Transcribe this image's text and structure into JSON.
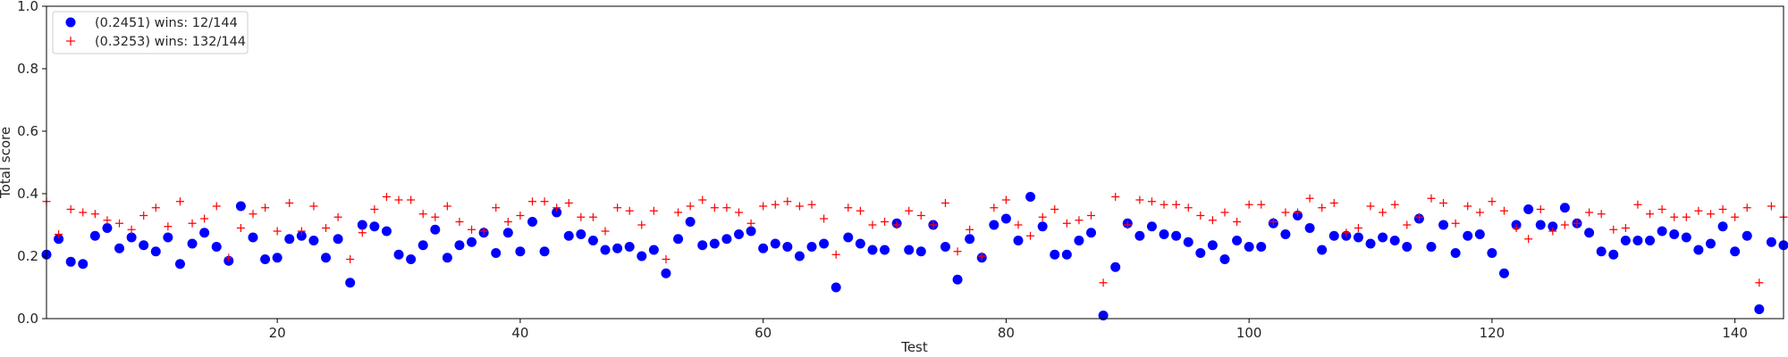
{
  "chart_data": {
    "type": "scatter",
    "title": "",
    "xlabel": "Test",
    "ylabel": "Total score",
    "xlim": [
      1,
      144
    ],
    "ylim": [
      0.0,
      1.0
    ],
    "xticks": [
      20,
      40,
      60,
      80,
      100,
      120,
      140
    ],
    "xtick_labels": [
      "20",
      "40",
      "60",
      "80",
      "100",
      "120",
      "140"
    ],
    "yticks": [
      0.0,
      0.2,
      0.4,
      0.6,
      0.8,
      1.0
    ],
    "ytick_labels": [
      "0.0",
      "0.2",
      "0.4",
      "0.6",
      "0.8",
      "1.0"
    ],
    "grid": false,
    "legend_position": "top-left",
    "series": [
      {
        "name": "(0.2451) wins: 12/144",
        "marker": "circle",
        "color": "#0000ff",
        "x": [
          1,
          2,
          3,
          4,
          5,
          6,
          7,
          8,
          9,
          10,
          11,
          12,
          13,
          14,
          15,
          16,
          17,
          18,
          19,
          20,
          21,
          22,
          23,
          24,
          25,
          26,
          27,
          28,
          29,
          30,
          31,
          32,
          33,
          34,
          35,
          36,
          37,
          38,
          39,
          40,
          41,
          42,
          43,
          44,
          45,
          46,
          47,
          48,
          49,
          50,
          51,
          52,
          53,
          54,
          55,
          56,
          57,
          58,
          59,
          60,
          61,
          62,
          63,
          64,
          65,
          66,
          67,
          68,
          69,
          70,
          71,
          72,
          73,
          74,
          75,
          76,
          77,
          78,
          79,
          80,
          81,
          82,
          83,
          84,
          85,
          86,
          87,
          88,
          89,
          90,
          91,
          92,
          93,
          94,
          95,
          96,
          97,
          98,
          99,
          100,
          101,
          102,
          103,
          104,
          105,
          106,
          107,
          108,
          109,
          110,
          111,
          112,
          113,
          114,
          115,
          116,
          117,
          118,
          119,
          120,
          121,
          122,
          123,
          124,
          125,
          126,
          127,
          128,
          129,
          130,
          131,
          132,
          133,
          134,
          135,
          136,
          137,
          138,
          139,
          140,
          141,
          142,
          143,
          144
        ],
        "y": [
          0.205,
          0.255,
          0.182,
          0.175,
          0.265,
          0.29,
          0.225,
          0.26,
          0.235,
          0.215,
          0.26,
          0.175,
          0.24,
          0.275,
          0.23,
          0.185,
          0.36,
          0.26,
          0.19,
          0.195,
          0.255,
          0.265,
          0.25,
          0.195,
          0.255,
          0.115,
          0.3,
          0.295,
          0.28,
          0.205,
          0.19,
          0.235,
          0.285,
          0.195,
          0.235,
          0.245,
          0.275,
          0.21,
          0.275,
          0.215,
          0.31,
          0.215,
          0.34,
          0.265,
          0.27,
          0.25,
          0.22,
          0.225,
          0.23,
          0.2,
          0.22,
          0.145,
          0.255,
          0.31,
          0.235,
          0.24,
          0.255,
          0.27,
          0.28,
          0.225,
          0.24,
          0.23,
          0.2,
          0.23,
          0.24,
          0.1,
          0.26,
          0.24,
          0.22,
          0.22,
          0.305,
          0.22,
          0.215,
          0.3,
          0.23,
          0.125,
          0.255,
          0.195,
          0.3,
          0.32,
          0.25,
          0.39,
          0.295,
          0.205,
          0.205,
          0.25,
          0.275,
          0.01,
          0.165,
          0.305,
          0.265,
          0.295,
          0.27,
          0.265,
          0.245,
          0.21,
          0.235,
          0.19,
          0.25,
          0.23,
          0.23,
          0.305,
          0.27,
          0.33,
          0.29,
          0.22,
          0.265,
          0.265,
          0.26,
          0.24,
          0.26,
          0.25,
          0.23,
          0.32,
          0.23,
          0.3,
          0.21,
          0.265,
          0.27,
          0.21,
          0.145,
          0.3,
          0.35,
          0.3,
          0.295,
          0.355,
          0.305,
          0.275,
          0.215,
          0.205,
          0.25,
          0.25,
          0.25,
          0.28,
          0.27,
          0.26,
          0.22,
          0.24,
          0.295,
          0.215,
          0.265,
          0.03,
          0.245,
          0.235
        ]
      },
      {
        "name": "(0.3253) wins: 132/144",
        "marker": "plus",
        "color": "#ff0000",
        "x": [
          1,
          2,
          3,
          4,
          5,
          6,
          7,
          8,
          9,
          10,
          11,
          12,
          13,
          14,
          15,
          16,
          17,
          18,
          19,
          20,
          21,
          22,
          23,
          24,
          25,
          26,
          27,
          28,
          29,
          30,
          31,
          32,
          33,
          34,
          35,
          36,
          37,
          38,
          39,
          40,
          41,
          42,
          43,
          44,
          45,
          46,
          47,
          48,
          49,
          50,
          51,
          52,
          53,
          54,
          55,
          56,
          57,
          58,
          59,
          60,
          61,
          62,
          63,
          64,
          65,
          66,
          67,
          68,
          69,
          70,
          71,
          72,
          73,
          74,
          75,
          76,
          77,
          78,
          79,
          80,
          81,
          82,
          83,
          84,
          85,
          86,
          87,
          88,
          89,
          90,
          91,
          92,
          93,
          94,
          95,
          96,
          97,
          98,
          99,
          100,
          101,
          102,
          103,
          104,
          105,
          106,
          107,
          108,
          109,
          110,
          111,
          112,
          113,
          114,
          115,
          116,
          117,
          118,
          119,
          120,
          121,
          122,
          123,
          124,
          125,
          126,
          127,
          128,
          129,
          130,
          131,
          132,
          133,
          134,
          135,
          136,
          137,
          138,
          139,
          140,
          141,
          142,
          143,
          144
        ],
        "y": [
          0.375,
          0.27,
          0.35,
          0.34,
          0.335,
          0.315,
          0.305,
          0.285,
          0.33,
          0.355,
          0.295,
          0.375,
          0.305,
          0.32,
          0.36,
          0.195,
          0.29,
          0.335,
          0.355,
          0.28,
          0.37,
          0.28,
          0.36,
          0.29,
          0.325,
          0.19,
          0.275,
          0.35,
          0.39,
          0.38,
          0.38,
          0.335,
          0.325,
          0.36,
          0.31,
          0.285,
          0.28,
          0.355,
          0.31,
          0.33,
          0.375,
          0.375,
          0.355,
          0.37,
          0.325,
          0.325,
          0.28,
          0.355,
          0.345,
          0.3,
          0.345,
          0.19,
          0.34,
          0.36,
          0.38,
          0.355,
          0.355,
          0.34,
          0.305,
          0.36,
          0.365,
          0.375,
          0.36,
          0.365,
          0.32,
          0.205,
          0.355,
          0.345,
          0.3,
          0.31,
          0.3,
          0.345,
          0.33,
          0.3,
          0.37,
          0.215,
          0.285,
          0.2,
          0.355,
          0.38,
          0.3,
          0.265,
          0.325,
          0.35,
          0.305,
          0.315,
          0.33,
          0.115,
          0.39,
          0.3,
          0.38,
          0.375,
          0.365,
          0.365,
          0.355,
          0.33,
          0.315,
          0.34,
          0.31,
          0.365,
          0.365,
          0.31,
          0.34,
          0.34,
          0.385,
          0.355,
          0.37,
          0.275,
          0.29,
          0.36,
          0.34,
          0.365,
          0.3,
          0.325,
          0.385,
          0.37,
          0.305,
          0.36,
          0.34,
          0.375,
          0.345,
          0.29,
          0.255,
          0.35,
          0.28,
          0.3,
          0.305,
          0.34,
          0.335,
          0.285,
          0.29,
          0.365,
          0.335,
          0.35,
          0.325,
          0.325,
          0.345,
          0.335,
          0.35,
          0.325,
          0.355,
          0.115,
          0.36,
          0.325
        ]
      }
    ]
  }
}
